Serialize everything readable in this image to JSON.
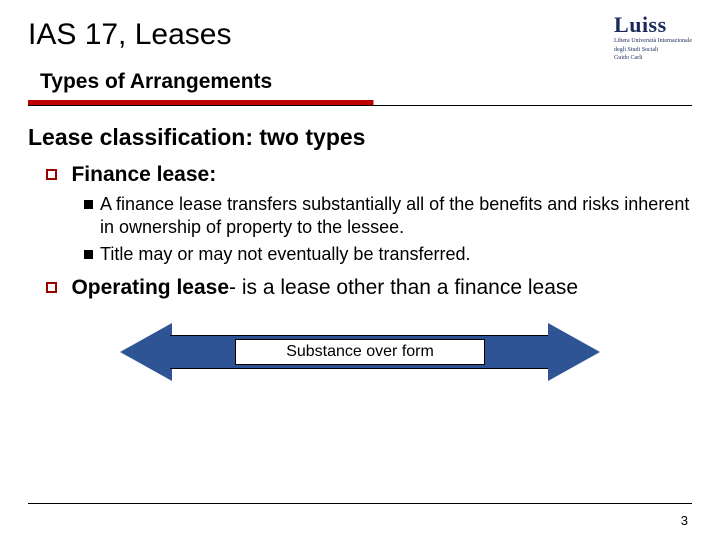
{
  "header": {
    "title": "IAS 17, Leases",
    "logo": {
      "main": "Luiss",
      "sub1": "Libera Università Internazionale",
      "sub2": "degli Studi Sociali",
      "sub3": "Guido Carli"
    }
  },
  "subtitle": "Types of Arrangements",
  "section_head": "Lease classification: two types",
  "finance": {
    "label": "Finance lease:",
    "points": [
      "A finance lease transfers substantially all of the benefits and risks inherent in ownership of property to the lessee.",
      "Title may or may not eventually be transferred."
    ]
  },
  "operating": {
    "bold": "Operating lease",
    "rest": "- is a lease other than a finance lease"
  },
  "arrow_label": "Substance over form",
  "page_number": "3",
  "colors": {
    "accent_red": "#c00000",
    "bullet_border": "#990000",
    "arrow_fill": "#2f5496",
    "logo_color": "#1a2a5c"
  }
}
